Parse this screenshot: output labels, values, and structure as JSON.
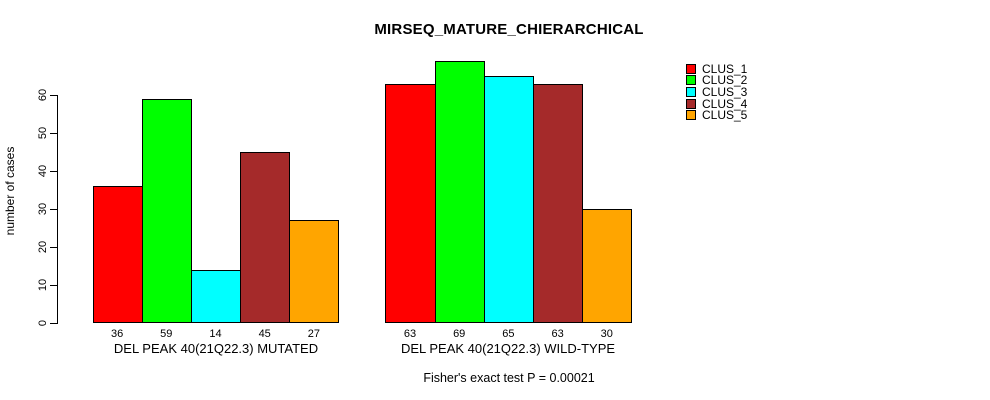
{
  "figure": {
    "title": "MIRSEQ_MATURE_CHIERARCHICAL",
    "subtitle": "Fisher's exact test P = 0.00021"
  },
  "chart_data": {
    "type": "bar",
    "title": "MIRSEQ_MATURE_CHIERARCHICAL",
    "xlabel": "",
    "ylabel": "number of cases",
    "ylim": [
      0,
      60
    ],
    "yticks": [
      0,
      10,
      20,
      30,
      40,
      50,
      60
    ],
    "grid": false,
    "background": "#FFFFFF",
    "bar_border_color": "#000000",
    "legend_position": "top-right",
    "value_labels_shown": true,
    "categories": [
      "DEL PEAK 40(21Q22.3) MUTATED",
      "DEL PEAK 40(21Q22.3) WILD-TYPE"
    ],
    "groups": [
      {
        "label": "DEL PEAK 40(21Q22.3) MUTATED",
        "values": [
          36,
          59,
          14,
          45,
          27
        ]
      },
      {
        "label": "DEL PEAK 40(21Q22.3) WILD-TYPE",
        "values": [
          63,
          69,
          65,
          63,
          30
        ]
      }
    ],
    "series": [
      {
        "name": "CLUS_1",
        "color": "#FF0000",
        "values": [
          36,
          63
        ]
      },
      {
        "name": "CLUS_2",
        "color": "#00FF00",
        "values": [
          59,
          69
        ]
      },
      {
        "name": "CLUS_3",
        "color": "#00FFFF",
        "values": [
          14,
          65
        ]
      },
      {
        "name": "CLUS_4",
        "color": "#A52A2A",
        "values": [
          45,
          63
        ]
      },
      {
        "name": "CLUS_5",
        "color": "#FFA500",
        "values": [
          27,
          30
        ]
      }
    ],
    "annotation": "Fisher's exact test P = 0.00021"
  },
  "legend": {
    "entries": [
      {
        "label": "CLUS_1",
        "color": "#FF0000"
      },
      {
        "label": "CLUS_2",
        "color": "#00FF00"
      },
      {
        "label": "CLUS_3",
        "color": "#00FFFF"
      },
      {
        "label": "CLUS_4",
        "color": "#A52A2A"
      },
      {
        "label": "CLUS_5",
        "color": "#FFA500"
      }
    ]
  }
}
